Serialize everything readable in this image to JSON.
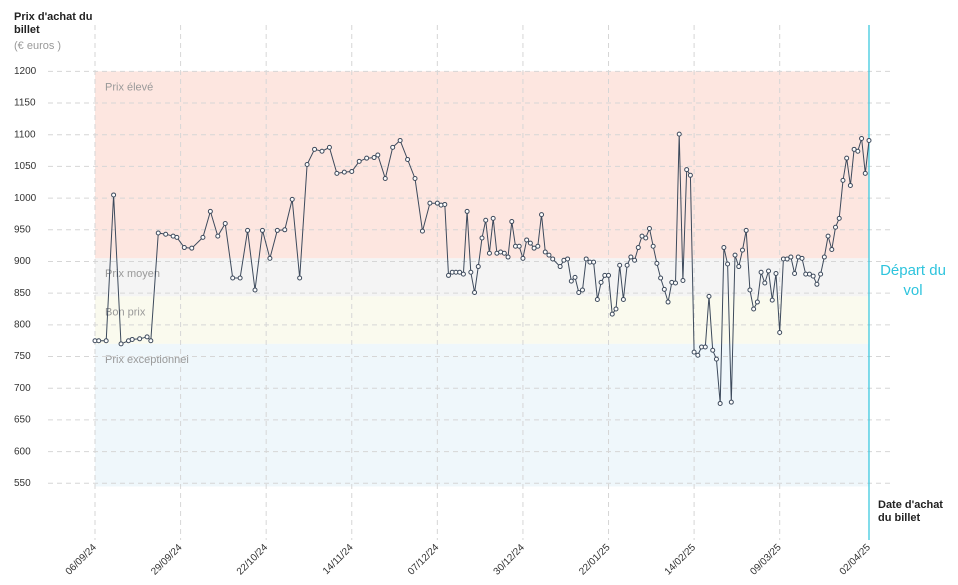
{
  "chart_data": {
    "type": "line",
    "y_label": "Prix d'achat du billet",
    "y_unit": "(€ euros )",
    "x_label": "Date d'achat du billet",
    "annotation": "Départ du vol",
    "color": "#3d4a5c",
    "annotation_color": "#2ec4dd",
    "grid": true,
    "ylim": [
      470,
      1270
    ],
    "yticks": [
      550,
      600,
      650,
      700,
      750,
      800,
      850,
      900,
      950,
      1000,
      1050,
      1100,
      1150,
      1200
    ],
    "xlim": [
      "2024-09-06",
      "2025-04-02"
    ],
    "xticks": [
      {
        "value": "2024-09-06",
        "label": "06/09/24"
      },
      {
        "value": "2024-09-29",
        "label": "29/09/24"
      },
      {
        "value": "2024-10-22",
        "label": "22/10/24"
      },
      {
        "value": "2024-11-14",
        "label": "14/11/24"
      },
      {
        "value": "2024-12-07",
        "label": "07/12/24"
      },
      {
        "value": "2024-12-30",
        "label": "30/12/24"
      },
      {
        "value": "2025-01-22",
        "label": "22/01/25"
      },
      {
        "value": "2025-02-14",
        "label": "14/02/25"
      },
      {
        "value": "2025-03-09",
        "label": "09/03/25"
      },
      {
        "value": "2025-04-02",
        "label": "02/04/25"
      }
    ],
    "bands": [
      {
        "label": "Prix élevé",
        "from": 905,
        "to": 1200,
        "color": "#fde6e0"
      },
      {
        "label": "Prix moyen",
        "from": 845,
        "to": 905,
        "color": "#f4f4f4"
      },
      {
        "label": "Bon prix",
        "from": 770,
        "to": 845,
        "color": "#fafaee"
      },
      {
        "label": "Prix exceptionnel",
        "from": 545,
        "to": 770,
        "color": "#eff7fb"
      }
    ],
    "x": [
      "2024-09-06",
      "2024-09-07",
      "2024-09-09",
      "2024-09-11",
      "2024-09-13",
      "2024-09-15",
      "2024-09-16",
      "2024-09-18",
      "2024-09-20",
      "2024-09-21",
      "2024-09-23",
      "2024-09-25",
      "2024-09-27",
      "2024-09-28",
      "2024-09-30",
      "2024-10-02",
      "2024-10-05",
      "2024-10-07",
      "2024-10-09",
      "2024-10-11",
      "2024-10-13",
      "2024-10-15",
      "2024-10-17",
      "2024-10-19",
      "2024-10-21",
      "2024-10-23",
      "2024-10-25",
      "2024-10-27",
      "2024-10-29",
      "2024-10-31",
      "2024-11-02",
      "2024-11-04",
      "2024-11-06",
      "2024-11-08",
      "2024-11-10",
      "2024-11-12",
      "2024-11-14",
      "2024-11-16",
      "2024-11-18",
      "2024-11-20",
      "2024-11-21",
      "2024-11-23",
      "2024-11-25",
      "2024-11-27",
      "2024-11-29",
      "2024-12-01",
      "2024-12-03",
      "2024-12-05",
      "2024-12-07",
      "2024-12-08",
      "2024-12-09",
      "2024-12-10",
      "2024-12-11",
      "2024-12-12",
      "2024-12-13",
      "2024-12-14",
      "2024-12-15",
      "2024-12-16",
      "2024-12-17",
      "2024-12-18",
      "2024-12-19",
      "2024-12-20",
      "2024-12-21",
      "2024-12-22",
      "2024-12-23",
      "2024-12-24",
      "2024-12-25",
      "2024-12-26",
      "2024-12-27",
      "2024-12-28",
      "2024-12-29",
      "2024-12-30",
      "2024-12-31",
      "2025-01-01",
      "2025-01-02",
      "2025-01-03",
      "2025-01-04",
      "2025-01-05",
      "2025-01-06",
      "2025-01-07",
      "2025-01-09",
      "2025-01-10",
      "2025-01-11",
      "2025-01-12",
      "2025-01-13",
      "2025-01-14",
      "2025-01-15",
      "2025-01-16",
      "2025-01-17",
      "2025-01-18",
      "2025-01-19",
      "2025-01-20",
      "2025-01-21",
      "2025-01-22",
      "2025-01-23",
      "2025-01-24",
      "2025-01-25",
      "2025-01-26",
      "2025-01-27",
      "2025-01-28",
      "2025-01-29",
      "2025-01-30",
      "2025-01-31",
      "2025-02-01",
      "2025-02-02",
      "2025-02-03",
      "2025-02-04",
      "2025-02-05",
      "2025-02-06",
      "2025-02-07",
      "2025-02-08",
      "2025-02-09",
      "2025-02-10",
      "2025-02-11",
      "2025-02-12",
      "2025-02-13",
      "2025-02-14",
      "2025-02-15",
      "2025-02-16",
      "2025-02-17",
      "2025-02-18",
      "2025-02-19",
      "2025-02-20",
      "2025-02-21",
      "2025-02-22",
      "2025-02-23",
      "2025-02-24",
      "2025-02-25",
      "2025-02-26",
      "2025-02-27",
      "2025-02-28",
      "2025-03-01",
      "2025-03-02",
      "2025-03-03",
      "2025-03-04",
      "2025-03-05",
      "2025-03-06",
      "2025-03-07",
      "2025-03-08",
      "2025-03-09",
      "2025-03-10",
      "2025-03-11",
      "2025-03-12",
      "2025-03-13",
      "2025-03-14",
      "2025-03-15",
      "2025-03-16",
      "2025-03-17",
      "2025-03-18",
      "2025-03-19",
      "2025-03-20",
      "2025-03-21",
      "2025-03-22",
      "2025-03-23",
      "2025-03-24",
      "2025-03-25",
      "2025-03-26",
      "2025-03-27",
      "2025-03-28",
      "2025-03-29",
      "2025-03-30",
      "2025-03-31",
      "2025-04-01",
      "2025-04-02"
    ],
    "values": [
      775,
      775,
      775,
      1005,
      770,
      775,
      777,
      778,
      781,
      775,
      945,
      943,
      940,
      938,
      922,
      921,
      938,
      979,
      940,
      960,
      874,
      874,
      949,
      855,
      949,
      905,
      949,
      950,
      998,
      874,
      1053,
      1077,
      1074,
      1080,
      1039,
      1041,
      1042,
      1058,
      1063,
      1064,
      1068,
      1031,
      1080,
      1091,
      1061,
      1031,
      948,
      992,
      992,
      989,
      990,
      878,
      883,
      883,
      883,
      880,
      979,
      883,
      851,
      892,
      937,
      965,
      913,
      968,
      913,
      915,
      913,
      907,
      963,
      924,
      924,
      905,
      934,
      929,
      921,
      924,
      974,
      915,
      910,
      904,
      892,
      902,
      904,
      869,
      875,
      851,
      855,
      904,
      899,
      899,
      840,
      867,
      878,
      878,
      817,
      825,
      894,
      840,
      894,
      907,
      902,
      922,
      940,
      937,
      952,
      924,
      897,
      874,
      856,
      836,
      867,
      866,
      1101,
      870,
      1045,
      1036,
      757,
      752,
      765,
      765,
      845,
      760,
      746,
      676,
      922,
      896,
      678,
      910,
      892,
      918,
      949,
      855,
      825,
      836,
      883,
      866,
      885,
      839,
      881,
      788,
      904,
      904,
      907,
      881,
      907,
      905,
      880,
      880,
      877,
      864,
      880,
      907,
      940,
      919,
      954,
      968,
      1028,
      1063,
      1020,
      1077,
      1074,
      1094,
      1039,
      1091
    ]
  }
}
